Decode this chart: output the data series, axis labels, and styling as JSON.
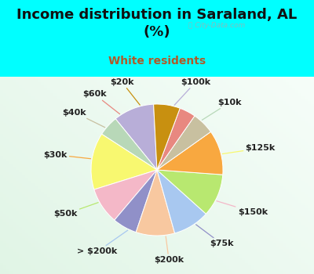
{
  "title": "Income distribution in Saraland, AL\n(%)",
  "subtitle": "White residents",
  "title_color": "#111111",
  "subtitle_color": "#b05a28",
  "background_color": "#00ffff",
  "chart_bg_start": "#f0faf5",
  "chart_bg_end": "#d8f0e8",
  "watermark": "ⓘ City-Data.com",
  "labels": [
    "$100k",
    "$10k",
    "$125k",
    "$150k",
    "$75k",
    "$200k",
    "> $200k",
    "$50k",
    "$30k",
    "$40k",
    "$60k",
    "$20k"
  ],
  "values": [
    10.0,
    5.0,
    14.0,
    9.0,
    6.0,
    9.5,
    9.0,
    10.5,
    11.0,
    5.5,
    4.0,
    6.5
  ],
  "colors": [
    "#b8aed8",
    "#b8d8b8",
    "#f8f870",
    "#f4b8c8",
    "#9090c8",
    "#f8c8a0",
    "#a8c8f0",
    "#b8e870",
    "#f8a840",
    "#c8c0a0",
    "#e88880",
    "#c89010"
  ],
  "label_fontsize": 8,
  "title_fontsize": 13,
  "subtitle_fontsize": 10,
  "start_angle": 93
}
